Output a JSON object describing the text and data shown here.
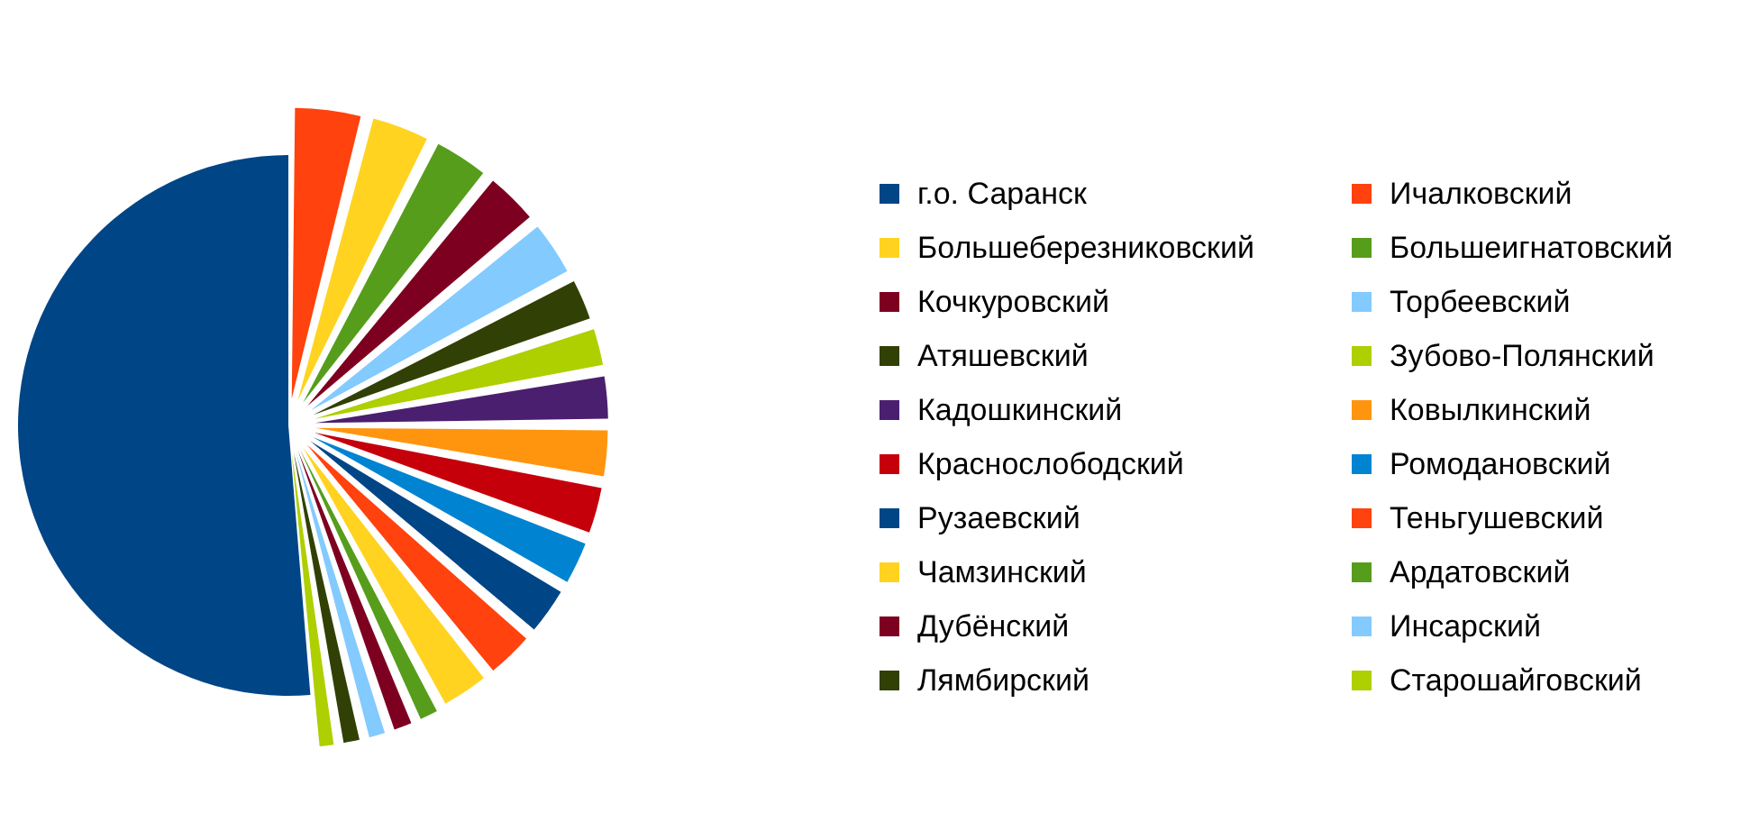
{
  "chart_data": {
    "type": "pie",
    "categories": [
      "г.о. Саранск",
      "Ичалковский",
      "Большеберезниковский",
      "Большеигнатовский",
      "Кочкуровский",
      "Торбеевский",
      "Атяшевский",
      "Зубово-Полянский",
      "Кадошкинский",
      "Ковылкинский",
      "Краснослободский",
      "Ромодановский",
      "Рузаевский",
      "Теньгушевский",
      "Чамзинский",
      "Ардатовский",
      "Дубёнский",
      "Инсарский",
      "Лямбирский",
      "Старошайговский"
    ],
    "values": [
      51.4,
      4.0,
      3.5,
      3.3,
      3.2,
      3.3,
      2.6,
      2.4,
      2.7,
      2.9,
      2.9,
      2.7,
      2.9,
      2.9,
      2.9,
      1.4,
      1.4,
      1.3,
      1.3,
      1.2
    ],
    "colors": [
      "#004586",
      "#ff420e",
      "#ffd320",
      "#579d1c",
      "#7e0021",
      "#83caff",
      "#314004",
      "#aecf00",
      "#4b1f6f",
      "#ff950e",
      "#c5000b",
      "#0084d1",
      "#004586",
      "#ff420e",
      "#ffd320",
      "#579d1c",
      "#7e0021",
      "#83caff",
      "#314004",
      "#aecf00"
    ],
    "legend": "right"
  }
}
